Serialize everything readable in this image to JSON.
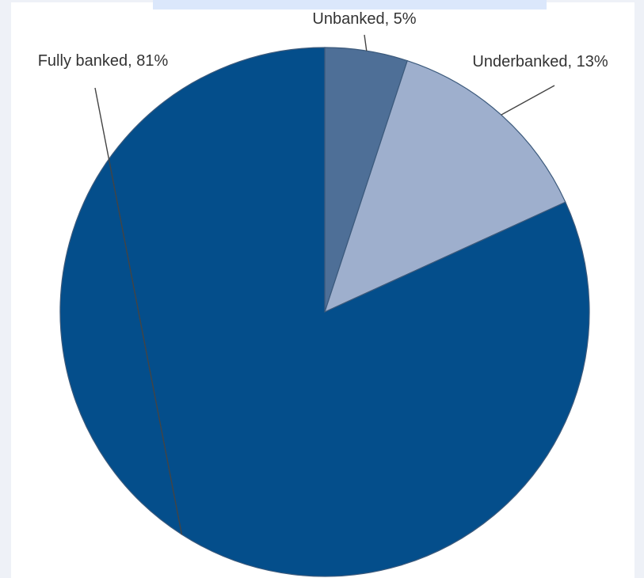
{
  "chart_data": {
    "type": "pie",
    "slices": [
      {
        "label": "Unbanked, 5%",
        "value": 5,
        "color": "#4e6f97"
      },
      {
        "label": "Underbanked, 13%",
        "value": 13,
        "color": "#9eafcd"
      },
      {
        "label": "Fully banked, 81%",
        "value": 81,
        "color": "#044e8b"
      }
    ]
  }
}
